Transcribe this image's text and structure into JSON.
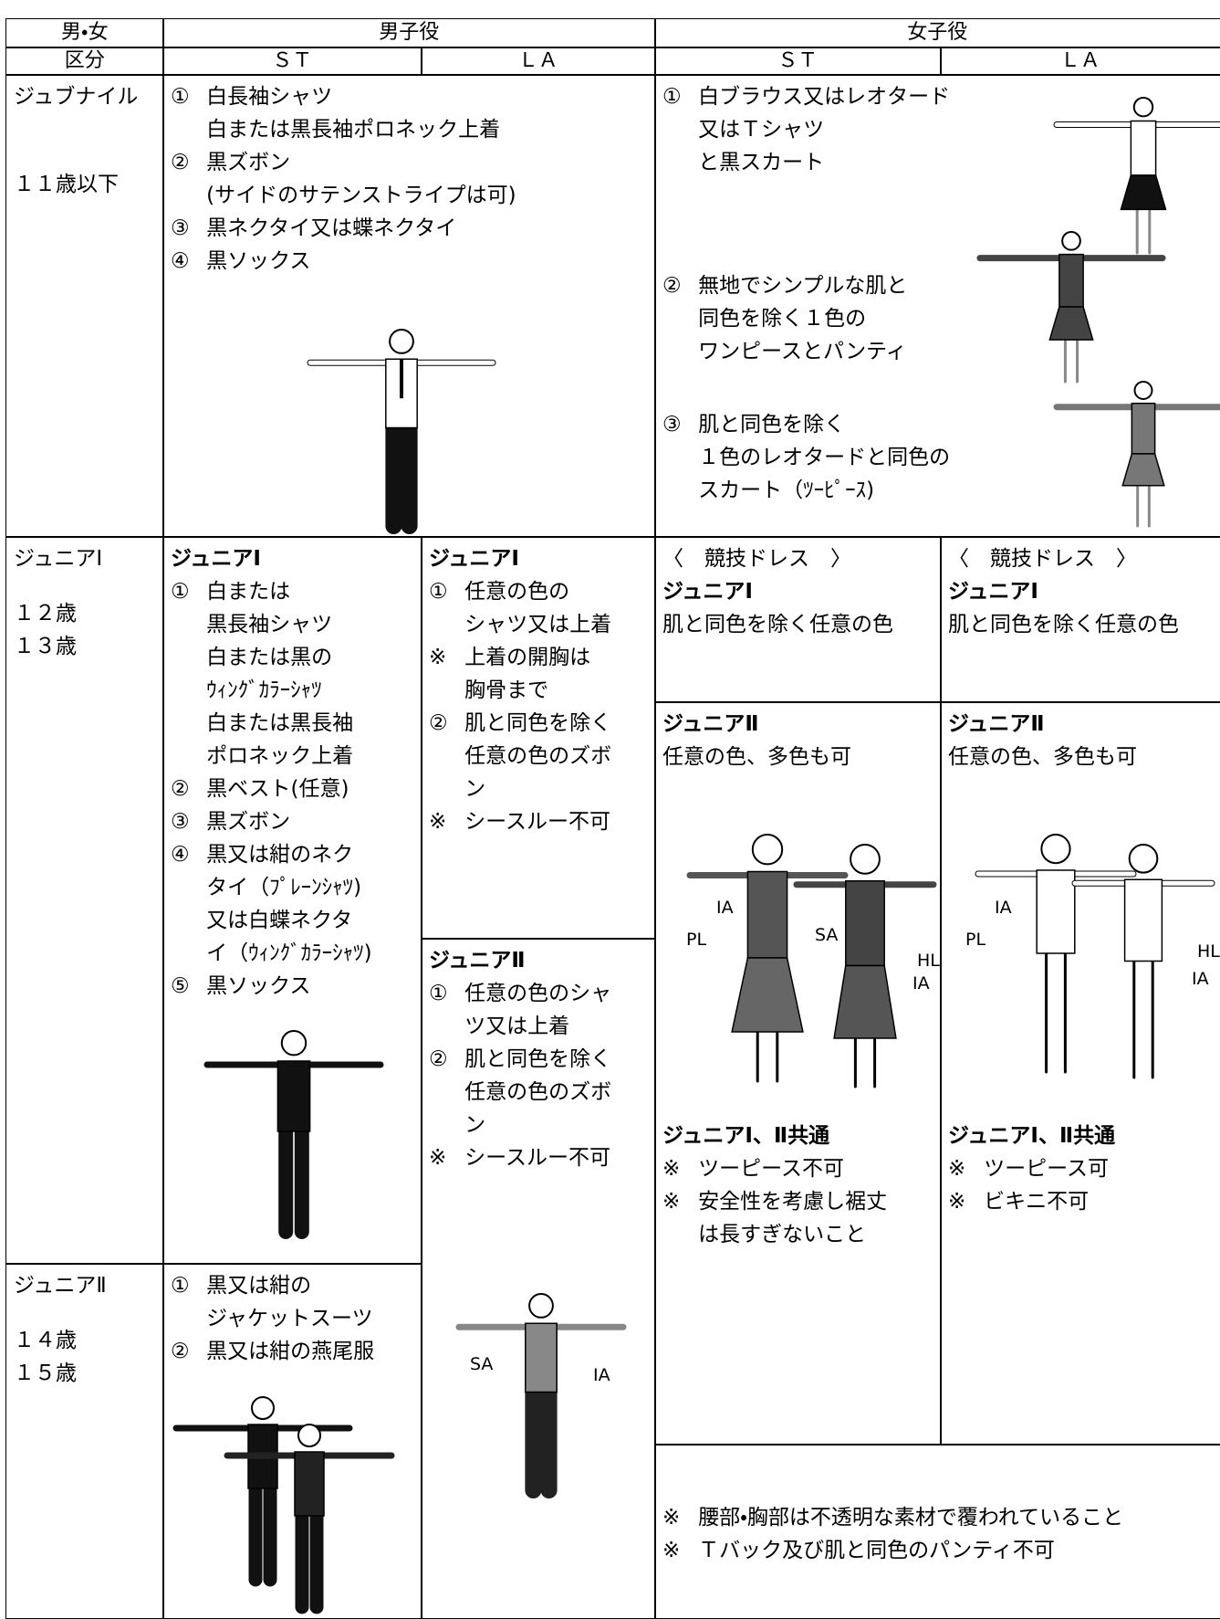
{
  "header": {
    "gender": "男・女",
    "male": "男子役",
    "female": "女子役",
    "division": "区分",
    "male_st": "ＳＴ",
    "male_la": "ＬＡ",
    "female_st": "ＳＴ",
    "female_la": "ＬＡ"
  },
  "cells": {
    "juv_label": {
      "groups": [
        [
          {
            "lines": [
              "ジュブナイル"
            ]
          }
        ],
        [
          {
            "lines": [
              "１１歳以下"
            ]
          }
        ]
      ]
    },
    "juv_male": {
      "groups": [
        [
          {
            "mark": "①",
            "lines": [
              "白長袖シャツ",
              "白または黒長袖ポロネック上着"
            ]
          },
          {
            "mark": "②",
            "lines": [
              "黒ズボン",
              "(サイドのサテンストライプは可)"
            ]
          },
          {
            "mark": "③",
            "lines": [
              "黒ネクタイ又は蝶ネクタイ"
            ]
          },
          {
            "mark": "④",
            "lines": [
              "黒ソックス"
            ]
          }
        ]
      ]
    },
    "juv_female": {
      "groups": [
        [
          {
            "mark": "①",
            "lines": [
              "白ブラウス又はレオタード",
              "又はＴシャツ",
              "と黒スカート"
            ]
          }
        ],
        [
          {
            "mark": "②",
            "lines": [
              "無地でシンプルな肌と",
              "同色を除く１色の",
              "ワンピースとパンティ"
            ]
          }
        ],
        [
          {
            "mark": "③",
            "lines": [
              "肌と同色を除く",
              "１色のレオタードと同色の",
              "スカート（ﾂｰﾋﾟｰｽ)"
            ]
          }
        ]
      ]
    },
    "j1_label": {
      "groups": [
        [
          {
            "lines": [
              "ジュニアⅠ"
            ]
          }
        ],
        [
          {
            "lines": [
              "１２歳",
              "１３歳"
            ]
          }
        ]
      ]
    },
    "j1_male_st": {
      "groups": [
        [
          {
            "bold": true,
            "lines": [
              "ジュニアⅠ"
            ]
          },
          {
            "mark": "①",
            "lines": [
              "白または",
              "黒長袖シャツ",
              "白または黒の",
              "ｳｨﾝｸﾞｶﾗｰｼｬﾂ",
              "白または黒長袖",
              "ポロネック上着"
            ]
          },
          {
            "mark": "②",
            "lines": [
              "黒ベスト(任意)"
            ]
          },
          {
            "mark": "③",
            "lines": [
              "黒ズボン"
            ]
          },
          {
            "mark": "④",
            "lines": [
              "黒又は紺のネク",
              "タイ（ﾌﾟﾚｰﾝｼｬﾂ)",
              "又は白蝶ネクタ",
              "イ（ｳｨﾝｸﾞｶﾗｰｼｬﾂ)"
            ]
          },
          {
            "mark": "⑤",
            "lines": [
              "黒ソックス"
            ]
          }
        ]
      ]
    },
    "j1_male_la": {
      "groups": [
        [
          {
            "bold": true,
            "lines": [
              "ジュニアⅠ"
            ]
          },
          {
            "mark": "①",
            "lines": [
              "任意の色の",
              "シャツ又は上着"
            ]
          },
          {
            "mark": "※",
            "lines": [
              "上着の開胸は",
              "胸骨まで"
            ]
          },
          {
            "mark": "②",
            "lines": [
              "肌と同色を除く",
              "任意の色のズボ",
              "ン"
            ]
          },
          {
            "mark": "※",
            "lines": [
              "シースルー不可"
            ]
          }
        ]
      ]
    },
    "j2_male_la": {
      "groups": [
        [
          {
            "bold": true,
            "lines": [
              "ジュニアⅡ"
            ]
          },
          {
            "mark": "①",
            "lines": [
              "任意の色のシャ",
              "ツ又は上着"
            ]
          },
          {
            "mark": "②",
            "lines": [
              "肌と同色を除く",
              "任意の色のズボ",
              "ン"
            ]
          },
          {
            "mark": "※",
            "lines": [
              "シースルー不可"
            ]
          }
        ]
      ],
      "labels": [
        "SA",
        "IA"
      ]
    },
    "j2_label": {
      "groups": [
        [
          {
            "lines": [
              "ジュニアⅡ"
            ]
          }
        ],
        [
          {
            "lines": [
              "１４歳",
              "１５歳"
            ]
          }
        ]
      ]
    },
    "j2_male_st": {
      "groups": [
        [
          {
            "mark": "①",
            "lines": [
              "黒又は紺の",
              "ジャケットスーツ"
            ]
          },
          {
            "mark": "②",
            "lines": [
              "黒又は紺の燕尾服"
            ]
          }
        ]
      ]
    },
    "f_dress_st": {
      "groups": [
        [
          {
            "lines": [
              "〈　競技ドレス　〉"
            ]
          },
          {
            "bold": true,
            "lines": [
              "ジュニアⅠ"
            ]
          },
          {
            "lines": [
              "肌と同色を除く任意の色"
            ]
          }
        ]
      ]
    },
    "f_dress_la": {
      "groups": [
        [
          {
            "lines": [
              "〈　競技ドレス　〉"
            ]
          },
          {
            "bold": true,
            "lines": [
              "ジュニアⅠ"
            ]
          },
          {
            "lines": [
              "肌と同色を除く任意の色"
            ]
          }
        ]
      ]
    },
    "f_j2_st": {
      "groups": [
        [
          {
            "bold": true,
            "lines": [
              "ジュニアⅡ"
            ]
          },
          {
            "lines": [
              "任意の色、多色も可"
            ]
          }
        ],
        [
          {
            "bold": true,
            "lines": [
              "ジュニアⅠ、Ⅱ共通"
            ]
          },
          {
            "mark": "※",
            "lines": [
              "ツーピース不可"
            ]
          },
          {
            "mark": "※",
            "lines": [
              "安全性を考慮し裾丈",
              "は長すぎないこと"
            ]
          }
        ]
      ],
      "labels": [
        "IA",
        "PL",
        "SA",
        "HL",
        "IA"
      ]
    },
    "f_j2_la": {
      "groups": [
        [
          {
            "bold": true,
            "lines": [
              "ジュニアⅡ"
            ]
          },
          {
            "lines": [
              "任意の色、多色も可"
            ]
          }
        ],
        [
          {
            "bold": true,
            "lines": [
              "ジュニアⅠ、Ⅱ共通"
            ]
          },
          {
            "mark": "※",
            "lines": [
              "ツーピース可"
            ]
          },
          {
            "mark": "※",
            "lines": [
              "ビキニ不可"
            ]
          }
        ]
      ],
      "labels": [
        "IA",
        "PL",
        "HL",
        "IA"
      ]
    },
    "f_notes": {
      "groups": [
        [
          {
            "mark": "※",
            "lines": [
              "腰部・胸部は不透明な素材で覆われていること"
            ]
          },
          {
            "mark": "※",
            "lines": [
              "Ｔバック及び肌と同色のパンティ不可"
            ]
          }
        ]
      ]
    }
  }
}
